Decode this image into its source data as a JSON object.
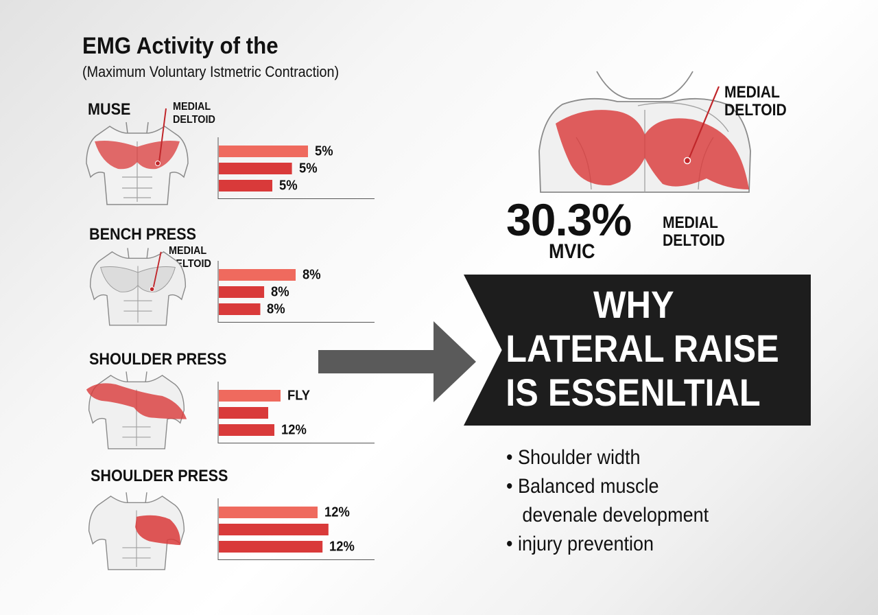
{
  "title": "EMG Activity of the",
  "subtitle": "(Maximum Voluntary Istmetric Contraction)",
  "colors": {
    "accent": "#d93a3a",
    "accent_light": "#ef6a5e",
    "banner": "#1d1d1d",
    "arrow": "#5a5a5a"
  },
  "exercises": [
    {
      "name": "MUSE",
      "callout": [
        "MEDIAL",
        "DELTOID"
      ],
      "icon": "torso-chest-highlight-icon",
      "bars": [
        {
          "value": 5,
          "label": "5%"
        },
        {
          "value": 5,
          "label": "5%"
        },
        {
          "value": 5,
          "label": "5%"
        }
      ]
    },
    {
      "name": "BENCH PRESS",
      "callout": [
        "MEDIAL",
        "DELTOID"
      ],
      "icon": "torso-chest-icon",
      "bars": [
        {
          "value": 8,
          "label": "8%"
        },
        {
          "value": 8,
          "label": "8%"
        },
        {
          "value": 8,
          "label": "8%"
        }
      ]
    },
    {
      "name": "SHOULDER PRESS",
      "callout": [],
      "icon": "torso-shoulder-highlight-icon",
      "bars": [
        {
          "value": 12,
          "label": "FLY"
        },
        {
          "value": 12,
          "label": ""
        },
        {
          "value": 12,
          "label": "12%"
        }
      ]
    },
    {
      "name": "SHOULDER PRESS",
      "callout": [],
      "icon": "torso-deltoid-highlight-icon",
      "bars": [
        {
          "value": 12,
          "label": "12%"
        },
        {
          "value": 12,
          "label": ""
        },
        {
          "value": 12,
          "label": "12%"
        }
      ]
    }
  ],
  "highlight": {
    "callout_top": [
      "MEDIAL",
      "DELTOID"
    ],
    "value": "30.3%",
    "unit": "MVIC",
    "callout_side": [
      "MEDIAL",
      "DELTOID"
    ]
  },
  "banner": {
    "lines": [
      "WHY",
      "LATERAL RAISE",
      "IS ESSENLTIAL"
    ]
  },
  "bullets": [
    {
      "bullet": true,
      "text": "Shoulder width"
    },
    {
      "bullet": true,
      "text": "Balanced muscle"
    },
    {
      "bullet": false,
      "text": "devenale development"
    },
    {
      "bullet": true,
      "text": "injury prevention"
    }
  ]
}
